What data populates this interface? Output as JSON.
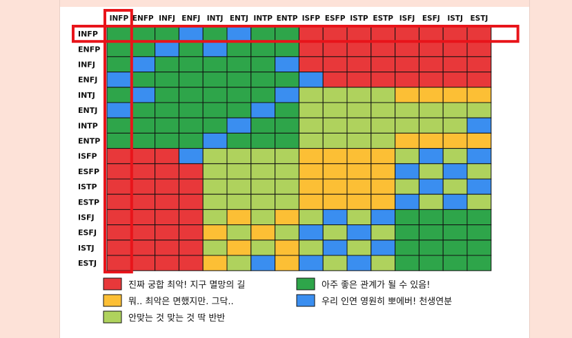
{
  "chart_data": {
    "type": "heatmap",
    "title": "",
    "columns": [
      "INFP",
      "ENFP",
      "INFJ",
      "ENFJ",
      "INTJ",
      "ENTJ",
      "INTP",
      "ENTP",
      "ISFP",
      "ESFP",
      "ISTP",
      "ESTP",
      "ISFJ",
      "ESFJ",
      "ISTJ",
      "ESTJ"
    ],
    "rows": [
      "INFP",
      "ENFP",
      "INFJ",
      "ENFJ",
      "INTJ",
      "ENTJ",
      "INTP",
      "ENTP",
      "ISFP",
      "ESFP",
      "ISTP",
      "ESTP",
      "ISFJ",
      "ESFJ",
      "ISTJ",
      "ESTJ"
    ],
    "levels": {
      "R": {
        "label": "진짜 궁합 최악! 지구 멸망의 길",
        "color": "#e8383a"
      },
      "O": {
        "label": "뭐.. 최악은 면했지만. 그닥..",
        "color": "#fcbf35"
      },
      "Y": {
        "label": "안맞는 것 맞는 것 딱 반반",
        "color": "#afd25d"
      },
      "G": {
        "label": "아주 좋은 관계가 될 수 있음!",
        "color": "#2ea54a"
      },
      "B": {
        "label": "우리 인연 영원히 뽀에버! 천생연분",
        "color": "#3a8ef0"
      }
    },
    "cells": [
      "GGGBGBGGRRRRRRRR",
      "GGBGBGGGRRRRRRRR",
      "GBGGGGGBRRRRRRRR",
      "BGGGGGGGBRRRRRRR",
      "GBGGGGGBYYYYOOOO",
      "BGGGGGBGYYYYYYYY",
      "GGGGGBGGYYYYYYYB",
      "GGGGBGGGYYYYOOOO",
      "RRRBYYYYOOOOYBYB",
      "RRRRYYYYOOOOBYBY",
      "RRRRYYYYOOOOYBYB",
      "RRRRYYYYOOOOBYBY",
      "RRRRYOYOYBYBGGGG",
      "RRRROYOYBYBYGGGG",
      "RRRRYOYOYBYBGGGG",
      "RRRROYBOBYBYGGGG"
    ],
    "highlight": {
      "row": "INFP",
      "column": "INFP",
      "color": "#e8141a"
    }
  },
  "legend": [
    {
      "key": "R",
      "label": "진짜 궁합 최악! 지구 멸망의 길"
    },
    {
      "key": "G",
      "label": "아주 좋은 관계가 될 수 있음!"
    },
    {
      "key": "O",
      "label": "뭐.. 최악은 면했지만. 그닥.."
    },
    {
      "key": "B",
      "label": "우리 인연 영원히 뽀에버! 천생연분"
    },
    {
      "key": "Y",
      "label": "안맞는 것 맞는 것 딱 반반"
    }
  ]
}
